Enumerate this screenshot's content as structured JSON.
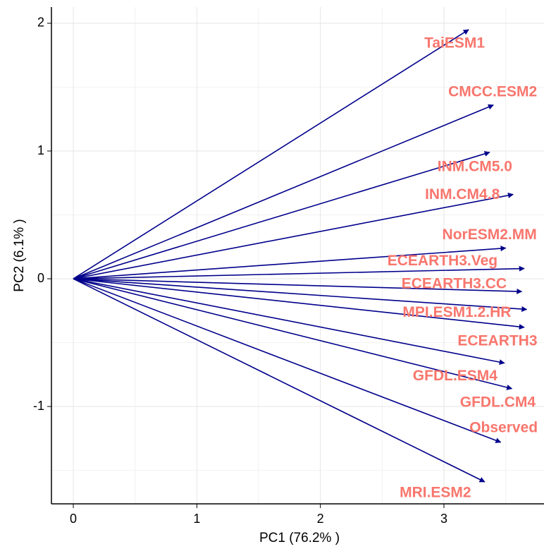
{
  "chart_data": {
    "type": "biplot",
    "x_label": "PC1 (76.2% )",
    "y_label": "PC2 (6.1% )",
    "xlim": [
      -0.177,
      3.81
    ],
    "ylim": [
      -1.762,
      2.127
    ],
    "xticks": [
      0,
      1,
      2,
      3
    ],
    "yticks": [
      -1,
      0,
      1,
      2
    ],
    "grid": true,
    "arrow_color": "#00008b",
    "label_color": "#f8766d",
    "vectors": [
      {
        "name": "TaiESM1",
        "x": 3.2,
        "y": 1.95
      },
      {
        "name": "CMCC.ESM2",
        "x": 3.4,
        "y": 1.36
      },
      {
        "name": "INM.CM5.0",
        "x": 3.37,
        "y": 0.99
      },
      {
        "name": "INM.CM4.8",
        "x": 3.56,
        "y": 0.66
      },
      {
        "name": "NorESM2.MM",
        "x": 3.5,
        "y": 0.24
      },
      {
        "name": "ECEARTH3.Veg",
        "x": 3.65,
        "y": 0.08
      },
      {
        "name": "ECEARTH3.CC",
        "x": 3.63,
        "y": -0.1
      },
      {
        "name": "MPI.ESM1.2.HR",
        "x": 3.67,
        "y": -0.24
      },
      {
        "name": "ECEARTH3",
        "x": 3.65,
        "y": -0.38
      },
      {
        "name": "GFDL.ESM4",
        "x": 3.49,
        "y": -0.66
      },
      {
        "name": "GFDL.CM4",
        "x": 3.55,
        "y": -0.86
      },
      {
        "name": "Observed",
        "x": 3.46,
        "y": -1.28
      },
      {
        "name": "MRI.ESM2",
        "x": 3.33,
        "y": -1.59
      }
    ]
  }
}
